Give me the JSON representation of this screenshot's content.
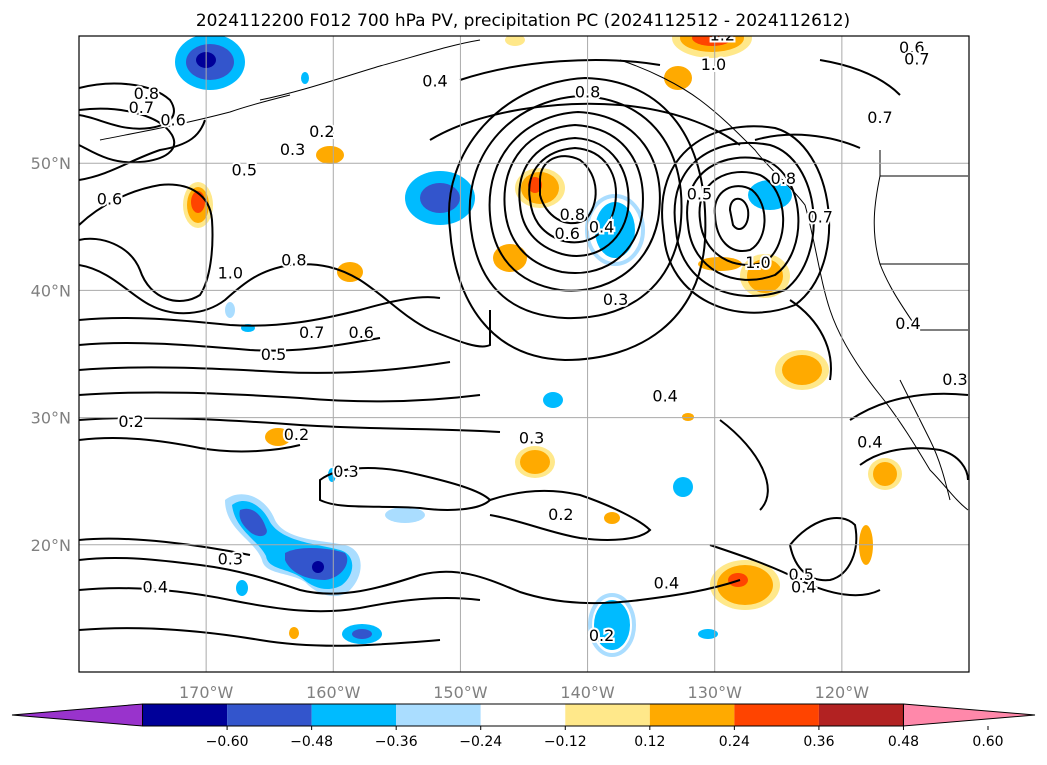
{
  "chart_data": {
    "type": "map-contour",
    "title": "2024112200 F012 700 hPa PV, precipitation PC (2024112512 - 2024112612)",
    "x_ticks": [
      "170°W",
      "160°W",
      "150°W",
      "140°W",
      "130°W",
      "120°W"
    ],
    "y_ticks": [
      "50°N",
      "40°N",
      "30°N",
      "20°N"
    ],
    "lon_range": [
      -180,
      -110
    ],
    "lat_range": [
      10,
      60
    ],
    "grid": true,
    "contour_labels": [
      {
        "text": "0.8",
        "lon": -174.7,
        "lat": 55.4
      },
      {
        "text": "0.7",
        "lon": -175.1,
        "lat": 54.3
      },
      {
        "text": "0.6",
        "lon": -172.6,
        "lat": 53.3
      },
      {
        "text": "0.2",
        "lon": -160.9,
        "lat": 52.4
      },
      {
        "text": "0.3",
        "lon": -163.2,
        "lat": 51.0
      },
      {
        "text": "0.5",
        "lon": -167.0,
        "lat": 49.4
      },
      {
        "text": "0.6",
        "lon": -177.6,
        "lat": 47.1
      },
      {
        "text": "0.8",
        "lon": -163.1,
        "lat": 42.3
      },
      {
        "text": "1.0",
        "lon": -168.1,
        "lat": 41.3
      },
      {
        "text": "0.7",
        "lon": -161.7,
        "lat": 36.6
      },
      {
        "text": "0.6",
        "lon": -157.8,
        "lat": 36.6
      },
      {
        "text": "0.5",
        "lon": -164.7,
        "lat": 34.9
      },
      {
        "text": "0.2",
        "lon": -175.9,
        "lat": 29.6
      },
      {
        "text": "0.2",
        "lon": -162.9,
        "lat": 28.6
      },
      {
        "text": "0.3",
        "lon": -159.0,
        "lat": 25.7
      },
      {
        "text": "0.3",
        "lon": -168.1,
        "lat": 18.8
      },
      {
        "text": "0.4",
        "lon": -174.0,
        "lat": 16.6
      },
      {
        "text": "0.4",
        "lon": -152.0,
        "lat": 56.4
      },
      {
        "text": "0.8",
        "lon": -140.0,
        "lat": 55.5
      },
      {
        "text": "0.5",
        "lon": -131.2,
        "lat": 47.5
      },
      {
        "text": "0.8",
        "lon": -141.2,
        "lat": 45.9
      },
      {
        "text": "0.6",
        "lon": -141.6,
        "lat": 44.4
      },
      {
        "text": "0.4",
        "lon": -138.9,
        "lat": 44.9
      },
      {
        "text": "0.3",
        "lon": -137.8,
        "lat": 39.2
      },
      {
        "text": "0.4",
        "lon": -133.9,
        "lat": 31.6
      },
      {
        "text": "0.3",
        "lon": -144.4,
        "lat": 28.3
      },
      {
        "text": "0.2",
        "lon": -142.1,
        "lat": 22.3
      },
      {
        "text": "0.4",
        "lon": -133.8,
        "lat": 16.9
      },
      {
        "text": "0.2",
        "lon": -138.9,
        "lat": 12.8
      },
      {
        "text": "1.2",
        "lon": -129.4,
        "lat": 60.0
      },
      {
        "text": "1.0",
        "lon": -130.1,
        "lat": 57.7
      },
      {
        "text": "0.6",
        "lon": -114.5,
        "lat": 59.0
      },
      {
        "text": "0.7",
        "lon": -114.1,
        "lat": 58.1
      },
      {
        "text": "0.7",
        "lon": -117.0,
        "lat": 53.5
      },
      {
        "text": "0.8",
        "lon": -124.6,
        "lat": 48.7
      },
      {
        "text": "1.0",
        "lon": -126.6,
        "lat": 42.1
      },
      {
        "text": "0.7",
        "lon": -121.7,
        "lat": 45.7
      },
      {
        "text": "0.4",
        "lon": -114.8,
        "lat": 37.3
      },
      {
        "text": "0.3",
        "lon": -111.1,
        "lat": 32.9
      },
      {
        "text": "0.4",
        "lon": -117.8,
        "lat": 28.0
      },
      {
        "text": "0.5",
        "lon": -123.2,
        "lat": 17.6
      },
      {
        "text": "0.4",
        "lon": -123.0,
        "lat": 16.6
      }
    ],
    "colorbar": {
      "ticks": [
        "−0.60",
        "−0.48",
        "−0.36",
        "−0.24",
        "−0.12",
        "0.12",
        "0.24",
        "0.36",
        "0.48",
        "0.60"
      ],
      "colors": [
        "#9933cc",
        "#000099",
        "#3355cc",
        "#00bbff",
        "#aaddff",
        "#ffffff",
        "#ffe88a",
        "#ffaa00",
        "#ff4400",
        "#b22222",
        "#ff88aa"
      ],
      "extend": "both"
    }
  }
}
